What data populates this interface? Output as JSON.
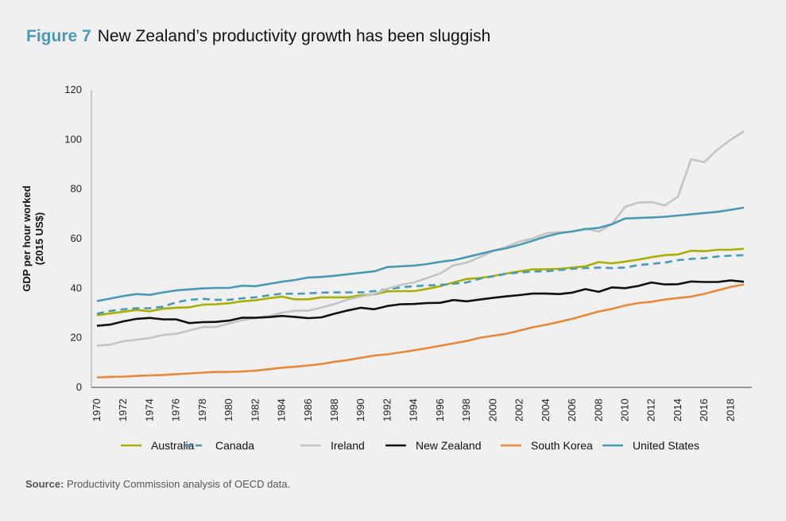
{
  "header": {
    "figure_label": "Figure 7",
    "title": "New Zealand’s productivity growth has been sluggish"
  },
  "source": {
    "label": "Source:",
    "text": " Productivity Commission analysis of OECD data."
  },
  "chart_data": {
    "type": "line",
    "title": "New Zealand’s productivity growth has been sluggish",
    "xlabel": "",
    "ylabel": "GDP per hour worked\n(2015 US$)",
    "ylabel_lines": [
      "GDP per hour worked",
      "(2015 US$)"
    ],
    "ylim": [
      0,
      120
    ],
    "yticks": [
      0,
      20,
      40,
      60,
      80,
      100,
      120
    ],
    "xlim": [
      1970,
      2019
    ],
    "xticks": [
      1970,
      1972,
      1974,
      1976,
      1978,
      1980,
      1982,
      1984,
      1986,
      1988,
      1990,
      1992,
      1994,
      1996,
      1998,
      2000,
      2002,
      2004,
      2006,
      2008,
      2010,
      2012,
      2014,
      2016,
      2018
    ],
    "grid": false,
    "legend_position": "bottom",
    "x": [
      1970,
      1971,
      1972,
      1973,
      1974,
      1975,
      1976,
      1977,
      1978,
      1979,
      1980,
      1981,
      1982,
      1983,
      1984,
      1985,
      1986,
      1987,
      1988,
      1989,
      1990,
      1991,
      1992,
      1993,
      1994,
      1995,
      1996,
      1997,
      1998,
      1999,
      2000,
      2001,
      2002,
      2003,
      2004,
      2005,
      2006,
      2007,
      2008,
      2009,
      2010,
      2011,
      2012,
      2013,
      2014,
      2015,
      2016,
      2017,
      2018,
      2019
    ],
    "series": [
      {
        "name": "Australia",
        "color": "#a9b000",
        "dash": "solid",
        "values": [
          28.8,
          29.5,
          30.2,
          30.9,
          30.4,
          31.4,
          31.8,
          32.0,
          33.0,
          33.2,
          33.6,
          34.4,
          34.8,
          35.6,
          36.3,
          35.2,
          35.2,
          36.0,
          36.0,
          36.0,
          36.8,
          37.2,
          38.4,
          38.5,
          38.5,
          39.4,
          40.5,
          42.0,
          43.4,
          43.8,
          44.6,
          45.6,
          46.5,
          47.3,
          47.3,
          47.5,
          48.0,
          48.5,
          50.2,
          49.7,
          50.4,
          51.2,
          52.2,
          53.0,
          53.3,
          54.8,
          54.6,
          55.2,
          55.2,
          55.6
        ]
      },
      {
        "name": "Canada",
        "color": "#4a9ab6",
        "dash": "dashed",
        "values": [
          29.4,
          30.5,
          31.2,
          31.6,
          31.6,
          32.2,
          34.0,
          35.0,
          35.4,
          35.0,
          35.0,
          35.6,
          36.0,
          36.8,
          37.5,
          37.4,
          37.6,
          37.9,
          38.0,
          38.0,
          38.0,
          38.5,
          39.2,
          40.0,
          40.5,
          40.8,
          41.0,
          41.5,
          42.0,
          43.5,
          44.5,
          45.5,
          46.0,
          46.4,
          46.5,
          47.0,
          47.5,
          47.8,
          48.0,
          47.8,
          48.0,
          49.0,
          49.5,
          50.0,
          51.0,
          51.5,
          51.8,
          52.5,
          52.8,
          53.0
        ]
      },
      {
        "name": "Ireland",
        "color": "#c4c4c4",
        "dash": "solid",
        "values": [
          16.5,
          16.9,
          18.3,
          18.9,
          19.6,
          20.8,
          21.3,
          22.6,
          24.0,
          24.0,
          25.4,
          26.8,
          27.6,
          28.5,
          29.8,
          30.6,
          30.6,
          31.9,
          33.3,
          35.1,
          36.3,
          37.3,
          39.5,
          41.0,
          42.0,
          43.8,
          45.6,
          48.9,
          50.0,
          52.2,
          54.7,
          56.3,
          58.5,
          59.7,
          61.8,
          62.3,
          62.4,
          63.8,
          62.5,
          65.5,
          72.5,
          74.2,
          74.4,
          73.1,
          76.5,
          91.7,
          90.5,
          95.6,
          99.6,
          103.0
        ]
      },
      {
        "name": "New Zealand",
        "color": "#111111",
        "dash": "solid",
        "values": [
          24.5,
          25.0,
          26.3,
          27.3,
          27.7,
          27.1,
          27.1,
          25.6,
          26.0,
          26.1,
          26.6,
          27.8,
          27.8,
          28.0,
          28.5,
          28.1,
          27.6,
          27.9,
          29.4,
          30.7,
          31.8,
          31.2,
          32.5,
          33.2,
          33.3,
          33.7,
          33.8,
          34.9,
          34.4,
          35.1,
          35.8,
          36.4,
          36.9,
          37.5,
          37.5,
          37.3,
          37.9,
          39.3,
          38.2,
          40.0,
          39.7,
          40.6,
          42.0,
          41.2,
          41.3,
          42.4,
          42.2,
          42.2,
          42.8,
          42.3
        ]
      },
      {
        "name": "South Korea",
        "color": "#e8893a",
        "dash": "solid",
        "values": [
          3.7,
          3.9,
          4.0,
          4.3,
          4.5,
          4.7,
          5.0,
          5.3,
          5.6,
          5.9,
          5.9,
          6.1,
          6.4,
          7.0,
          7.6,
          8.0,
          8.5,
          9.1,
          10.0,
          10.7,
          11.6,
          12.5,
          13.0,
          13.8,
          14.6,
          15.5,
          16.5,
          17.4,
          18.4,
          19.7,
          20.5,
          21.3,
          22.6,
          23.9,
          24.9,
          26.1,
          27.3,
          28.8,
          30.3,
          31.3,
          32.7,
          33.7,
          34.2,
          35.1,
          35.7,
          36.3,
          37.4,
          38.8,
          40.2,
          41.2
        ]
      },
      {
        "name": "United States",
        "color": "#4a9ab6",
        "dash": "solid",
        "values": [
          34.5,
          35.5,
          36.5,
          37.3,
          37.0,
          38.0,
          38.8,
          39.2,
          39.6,
          39.8,
          39.8,
          40.7,
          40.5,
          41.4,
          42.3,
          43.0,
          44.0,
          44.2,
          44.7,
          45.3,
          45.9,
          46.5,
          48.2,
          48.5,
          48.8,
          49.4,
          50.3,
          51.0,
          52.2,
          53.5,
          54.8,
          55.8,
          57.2,
          58.8,
          60.5,
          61.8,
          62.6,
          63.5,
          64.0,
          65.5,
          67.8,
          68.0,
          68.2,
          68.5,
          69.0,
          69.5,
          70.0,
          70.5,
          71.3,
          72.2
        ]
      }
    ]
  }
}
